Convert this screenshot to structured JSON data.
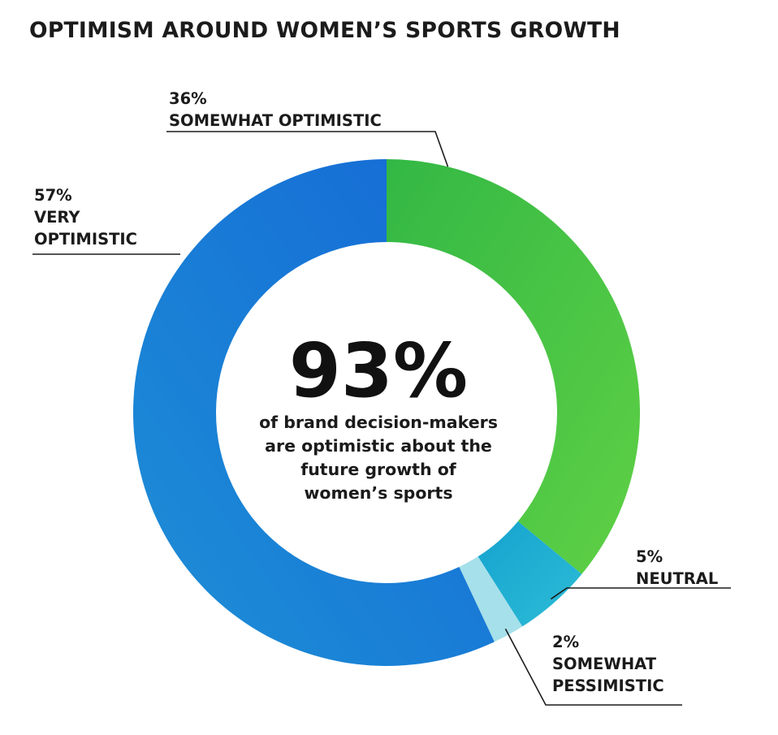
{
  "chart_data": {
    "type": "pie",
    "title": "OPTIMISM AROUND WOMEN’S SPORTS GROWTH",
    "slices": [
      {
        "label_lines": [
          "SOMEWHAT OPTIMISTIC"
        ],
        "percent_label": "36%",
        "value": 36,
        "color": "#3fc24a"
      },
      {
        "label_lines": [
          "NEUTRAL"
        ],
        "percent_label": "5%",
        "value": 5,
        "color": "#1aa9cf"
      },
      {
        "label_lines": [
          "SOMEWHAT",
          "PESSIMISTIC"
        ],
        "percent_label": "2%",
        "value": 2,
        "color": "#a6e0ea"
      },
      {
        "label_lines": [
          "VERY",
          "OPTIMISTIC"
        ],
        "percent_label": "57%",
        "value": 57,
        "color": "#1a76d8"
      }
    ],
    "center": {
      "value": "93%",
      "caption_lines": [
        "of brand decision-makers",
        "are optimistic about the",
        "future growth of",
        "women’s sports"
      ]
    }
  }
}
